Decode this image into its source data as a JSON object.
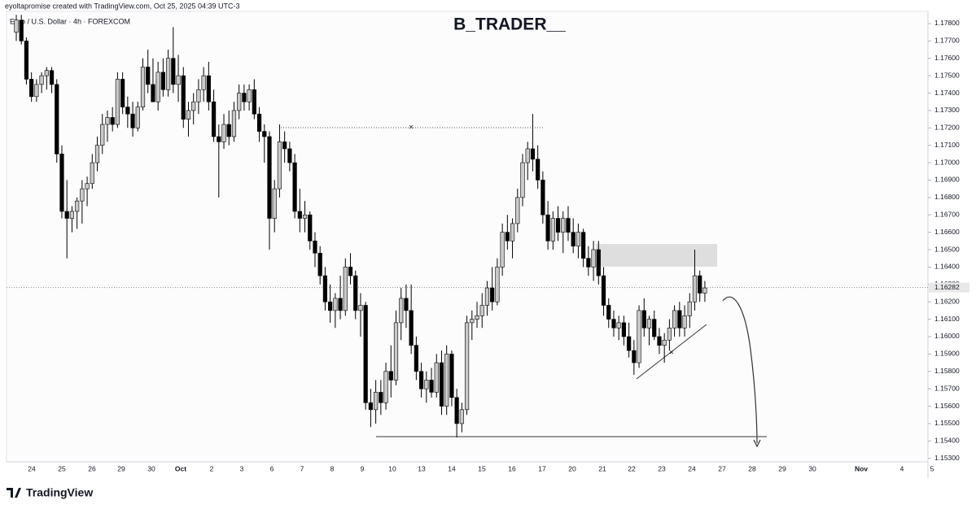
{
  "chart_data": {
    "type": "candlestick",
    "header": "eyoltapromise created with TradingView.com, Oct 25, 2025 04:39 UTC-3",
    "symbol": "Euro / U.S. Dollar · 4h · FOREXCOM",
    "title": "B_TRADER__",
    "brand": "TradingView",
    "up_color": "#c9c9c9",
    "down_color": "#000000",
    "ylim": [
      1.1528,
      1.1787
    ],
    "yticks": [
      {
        "value": 1.153,
        "label": "1.15300"
      },
      {
        "value": 1.154,
        "label": "1.15400"
      },
      {
        "value": 1.155,
        "label": "1.15500"
      },
      {
        "value": 1.156,
        "label": "1.15600"
      },
      {
        "value": 1.157,
        "label": "1.15700"
      },
      {
        "value": 1.158,
        "label": "1.15800"
      },
      {
        "value": 1.159,
        "label": "1.15900"
      },
      {
        "value": 1.16,
        "label": "1.16000"
      },
      {
        "value": 1.161,
        "label": "1.16100"
      },
      {
        "value": 1.162,
        "label": "1.16200"
      },
      {
        "value": 1.163,
        "label": "1.16300"
      },
      {
        "value": 1.164,
        "label": "1.16400"
      },
      {
        "value": 1.165,
        "label": "1.16500"
      },
      {
        "value": 1.166,
        "label": "1.16600"
      },
      {
        "value": 1.167,
        "label": "1.16700"
      },
      {
        "value": 1.168,
        "label": "1.16800"
      },
      {
        "value": 1.169,
        "label": "1.16900"
      },
      {
        "value": 1.17,
        "label": "1.17000"
      },
      {
        "value": 1.171,
        "label": "1.17100"
      },
      {
        "value": 1.172,
        "label": "1.17200"
      },
      {
        "value": 1.173,
        "label": "1.17300"
      },
      {
        "value": 1.174,
        "label": "1.17400"
      },
      {
        "value": 1.175,
        "label": "1.17500"
      },
      {
        "value": 1.176,
        "label": "1.17600"
      },
      {
        "value": 1.177,
        "label": "1.17700"
      },
      {
        "value": 1.178,
        "label": "1.17800"
      }
    ],
    "last_price": 1.16282,
    "x_labels": [
      "24",
      "25",
      "26",
      "29",
      "30",
      "Oct",
      "2",
      "3",
      "6",
      "7",
      "8",
      "9",
      "10",
      "13",
      "14",
      "15",
      "16",
      "17",
      "20",
      "21",
      "22",
      "23",
      "24",
      "27",
      "28",
      "29",
      "30",
      "Nov",
      "4",
      "5"
    ],
    "ohlc": [
      [
        1.1775,
        1.1785,
        1.177,
        1.1782
      ],
      [
        1.1782,
        1.1785,
        1.1768,
        1.177
      ],
      [
        1.177,
        1.1772,
        1.1745,
        1.1748
      ],
      [
        1.1748,
        1.1752,
        1.1735,
        1.1738
      ],
      [
        1.1738,
        1.1748,
        1.1735,
        1.1745
      ],
      [
        1.1745,
        1.1752,
        1.174,
        1.175
      ],
      [
        1.175,
        1.1755,
        1.1742,
        1.1753
      ],
      [
        1.1753,
        1.1755,
        1.174,
        1.1745
      ],
      [
        1.1745,
        1.1748,
        1.17,
        1.1705
      ],
      [
        1.1705,
        1.171,
        1.1668,
        1.1672
      ],
      [
        1.1672,
        1.169,
        1.1645,
        1.1668
      ],
      [
        1.1668,
        1.1675,
        1.166,
        1.1672
      ],
      [
        1.1672,
        1.168,
        1.1662,
        1.1678
      ],
      [
        1.1678,
        1.169,
        1.1665,
        1.1685
      ],
      [
        1.1685,
        1.1692,
        1.1675,
        1.1688
      ],
      [
        1.1688,
        1.1705,
        1.1685,
        1.17
      ],
      [
        1.17,
        1.1715,
        1.1695,
        1.171
      ],
      [
        1.171,
        1.1728,
        1.1705,
        1.1722
      ],
      [
        1.1722,
        1.173,
        1.1712,
        1.1726
      ],
      [
        1.1726,
        1.1732,
        1.1718,
        1.1722
      ],
      [
        1.1722,
        1.1752,
        1.172,
        1.1748
      ],
      [
        1.1748,
        1.1752,
        1.1728,
        1.1732
      ],
      [
        1.1732,
        1.1738,
        1.172,
        1.1728
      ],
      [
        1.1728,
        1.1735,
        1.1715,
        1.172
      ],
      [
        1.172,
        1.1735,
        1.1718,
        1.1732
      ],
      [
        1.1732,
        1.176,
        1.173,
        1.1755
      ],
      [
        1.1755,
        1.1765,
        1.174,
        1.1745
      ],
      [
        1.1745,
        1.176,
        1.1735,
        1.1735
      ],
      [
        1.1735,
        1.1758,
        1.173,
        1.1752
      ],
      [
        1.1752,
        1.176,
        1.1738,
        1.1742
      ],
      [
        1.1742,
        1.1765,
        1.1738,
        1.176
      ],
      [
        1.176,
        1.1778,
        1.174,
        1.1745
      ],
      [
        1.1745,
        1.1762,
        1.1735,
        1.175
      ],
      [
        1.175,
        1.1755,
        1.172,
        1.1725
      ],
      [
        1.1725,
        1.1735,
        1.1715,
        1.173
      ],
      [
        1.173,
        1.174,
        1.1722,
        1.1735
      ],
      [
        1.1735,
        1.1748,
        1.1728,
        1.1742
      ],
      [
        1.1742,
        1.1755,
        1.1735,
        1.175
      ],
      [
        1.175,
        1.1758,
        1.173,
        1.1735
      ],
      [
        1.1735,
        1.1742,
        1.1712,
        1.1715
      ],
      [
        1.1715,
        1.1722,
        1.168,
        1.1712
      ],
      [
        1.1712,
        1.1728,
        1.1708,
        1.1722
      ],
      [
        1.1722,
        1.173,
        1.171,
        1.1715
      ],
      [
        1.1715,
        1.1735,
        1.1712,
        1.173
      ],
      [
        1.173,
        1.1745,
        1.1725,
        1.174
      ],
      [
        1.174,
        1.1745,
        1.173,
        1.1735
      ],
      [
        1.1735,
        1.1745,
        1.173,
        1.1742
      ],
      [
        1.1742,
        1.1748,
        1.1725,
        1.1728
      ],
      [
        1.1728,
        1.1732,
        1.1712,
        1.1718
      ],
      [
        1.1718,
        1.1722,
        1.17,
        1.1715
      ],
      [
        1.1715,
        1.1718,
        1.165,
        1.1668
      ],
      [
        1.1668,
        1.169,
        1.166,
        1.1685
      ],
      [
        1.1685,
        1.1722,
        1.168,
        1.1712
      ],
      [
        1.1712,
        1.1718,
        1.17,
        1.1708
      ],
      [
        1.1708,
        1.1712,
        1.1695,
        1.17
      ],
      [
        1.17,
        1.1705,
        1.1668,
        1.1672
      ],
      [
        1.1672,
        1.1685,
        1.166,
        1.1668
      ],
      [
        1.1668,
        1.1678,
        1.166,
        1.167
      ],
      [
        1.167,
        1.1672,
        1.165,
        1.1655
      ],
      [
        1.1655,
        1.166,
        1.164,
        1.1648
      ],
      [
        1.1648,
        1.1652,
        1.163,
        1.1635
      ],
      [
        1.1635,
        1.164,
        1.1615,
        1.162
      ],
      [
        1.162,
        1.163,
        1.1608,
        1.1615
      ],
      [
        1.1615,
        1.1625,
        1.1605,
        1.1622
      ],
      [
        1.1622,
        1.1635,
        1.161,
        1.1615
      ],
      [
        1.1615,
        1.1645,
        1.1612,
        1.164
      ],
      [
        1.164,
        1.1648,
        1.163,
        1.1635
      ],
      [
        1.1635,
        1.1638,
        1.161,
        1.1615
      ],
      [
        1.1615,
        1.1625,
        1.16,
        1.1618
      ],
      [
        1.1618,
        1.162,
        1.1558,
        1.1562
      ],
      [
        1.1562,
        1.157,
        1.1548,
        1.1558
      ],
      [
        1.1558,
        1.1575,
        1.155,
        1.1568
      ],
      [
        1.1568,
        1.1575,
        1.1555,
        1.1562
      ],
      [
        1.1562,
        1.1585,
        1.1558,
        1.158
      ],
      [
        1.158,
        1.1595,
        1.1565,
        1.1575
      ],
      [
        1.1575,
        1.1615,
        1.1572,
        1.1608
      ],
      [
        1.1608,
        1.1628,
        1.1598,
        1.1622
      ],
      [
        1.1622,
        1.163,
        1.1605,
        1.1615
      ],
      [
        1.1615,
        1.163,
        1.159,
        1.1595
      ],
      [
        1.1595,
        1.16,
        1.1575,
        1.158
      ],
      [
        1.158,
        1.1585,
        1.1565,
        1.157
      ],
      [
        1.157,
        1.158,
        1.1562,
        1.1575
      ],
      [
        1.1575,
        1.1582,
        1.1565,
        1.1568
      ],
      [
        1.1568,
        1.159,
        1.1565,
        1.1585
      ],
      [
        1.1585,
        1.1592,
        1.1555,
        1.156
      ],
      [
        1.156,
        1.1595,
        1.1555,
        1.159
      ],
      [
        1.159,
        1.1592,
        1.156,
        1.1565
      ],
      [
        1.1565,
        1.157,
        1.1542,
        1.155
      ],
      [
        1.155,
        1.1562,
        1.1545,
        1.1558
      ],
      [
        1.1558,
        1.1612,
        1.1555,
        1.1608
      ],
      [
        1.1608,
        1.1615,
        1.1598,
        1.161
      ],
      [
        1.161,
        1.162,
        1.1605,
        1.1612
      ],
      [
        1.1612,
        1.1625,
        1.1605,
        1.1618
      ],
      [
        1.1618,
        1.1632,
        1.1612,
        1.1628
      ],
      [
        1.1628,
        1.164,
        1.1615,
        1.162
      ],
      [
        1.162,
        1.1645,
        1.1618,
        1.164
      ],
      [
        1.164,
        1.1665,
        1.1635,
        1.166
      ],
      [
        1.166,
        1.167,
        1.165,
        1.1655
      ],
      [
        1.1655,
        1.1668,
        1.1645,
        1.1665
      ],
      [
        1.1665,
        1.1685,
        1.166,
        1.168
      ],
      [
        1.168,
        1.1705,
        1.1675,
        1.17
      ],
      [
        1.17,
        1.1712,
        1.169,
        1.1708
      ],
      [
        1.1708,
        1.1728,
        1.1695,
        1.1702
      ],
      [
        1.1702,
        1.171,
        1.1685,
        1.169
      ],
      [
        1.169,
        1.1695,
        1.1665,
        1.167
      ],
      [
        1.167,
        1.1678,
        1.165,
        1.1655
      ],
      [
        1.1655,
        1.1672,
        1.165,
        1.1668
      ],
      [
        1.1668,
        1.1675,
        1.1655,
        1.166
      ],
      [
        1.166,
        1.1672,
        1.1648,
        1.1668
      ],
      [
        1.1668,
        1.1675,
        1.1655,
        1.166
      ],
      [
        1.166,
        1.1668,
        1.1648,
        1.1652
      ],
      [
        1.1652,
        1.1665,
        1.1645,
        1.166
      ],
      [
        1.166,
        1.1662,
        1.164,
        1.1645
      ],
      [
        1.1645,
        1.1652,
        1.1635,
        1.164
      ],
      [
        1.164,
        1.1655,
        1.1632,
        1.165
      ],
      [
        1.165,
        1.1655,
        1.163,
        1.1635
      ],
      [
        1.1635,
        1.164,
        1.1612,
        1.1618
      ],
      [
        1.1618,
        1.1622,
        1.1605,
        1.161
      ],
      [
        1.161,
        1.1615,
        1.16,
        1.1605
      ],
      [
        1.1605,
        1.1612,
        1.1598,
        1.1608
      ],
      [
        1.1608,
        1.1612,
        1.1595,
        1.16
      ],
      [
        1.16,
        1.1608,
        1.1588,
        1.1592
      ],
      [
        1.1592,
        1.1598,
        1.1578,
        1.1585
      ],
      [
        1.1585,
        1.1618,
        1.1582,
        1.1615
      ],
      [
        1.1615,
        1.1622,
        1.16,
        1.1605
      ],
      [
        1.1605,
        1.1612,
        1.1595,
        1.161
      ],
      [
        1.161,
        1.1615,
        1.1598,
        1.16
      ],
      [
        1.16,
        1.1605,
        1.159,
        1.1595
      ],
      [
        1.1595,
        1.1602,
        1.1585,
        1.1598
      ],
      [
        1.1598,
        1.161,
        1.1592,
        1.1605
      ],
      [
        1.1605,
        1.1618,
        1.16,
        1.1615
      ],
      [
        1.1615,
        1.162,
        1.16,
        1.1605
      ],
      [
        1.1605,
        1.1618,
        1.16,
        1.1612
      ],
      [
        1.1612,
        1.1625,
        1.1605,
        1.162
      ],
      [
        1.162,
        1.165,
        1.1615,
        1.1635
      ],
      [
        1.1635,
        1.1638,
        1.162,
        1.1625
      ],
      [
        1.1625,
        1.1632,
        1.162,
        1.1628
      ]
    ]
  }
}
